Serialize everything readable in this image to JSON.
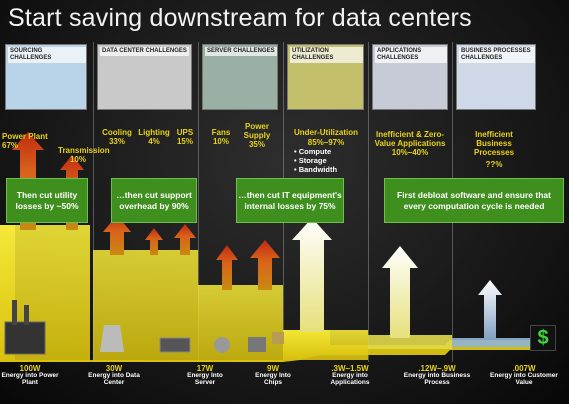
{
  "title": "Start saving downstream for data centers",
  "panels": [
    {
      "id": "sourcing",
      "caption": "Sourcing Challenges"
    },
    {
      "id": "datacenter",
      "caption": "Data Center Challenges"
    },
    {
      "id": "server",
      "caption": "Server Challenges"
    },
    {
      "id": "utilization",
      "caption": "Utilization Challenges"
    },
    {
      "id": "applications",
      "caption": "Applications Challenges"
    },
    {
      "id": "business",
      "caption": "Business Processes Challenges"
    }
  ],
  "losses": {
    "power_plant": "Power Plant 67%",
    "transmission": "Transmission 10%",
    "cooling": "Cooling 33%",
    "lighting": "Lighting 4%",
    "ups": "UPS 15%",
    "fans": "Fans 10%",
    "power_supply": "Power Supply 35%",
    "under_utilization_title": "Under-Utilization",
    "under_utilization_pct": "85%–97%",
    "under_utilization_items": [
      "Compute",
      "Storage",
      "Bandwidth"
    ],
    "inefficient_apps": "Inefficient & Zero-Value Applications 10%–40%",
    "inefficient_bp_title": "Inefficient Business Processes",
    "inefficient_bp_pct": "??%"
  },
  "boxes": {
    "utility": "Then cut utility losses by ~50%",
    "support": "…then cut support overhead by 90%",
    "it": "…then cut IT equipment's internal losses by 75%",
    "software": "First debloat software and ensure that every computation cycle is needed"
  },
  "stages": [
    {
      "value": "100W",
      "desc": "Energy into Power Plant"
    },
    {
      "value": "30W",
      "desc": "Energy into Data Center"
    },
    {
      "value": "17W",
      "desc": "Energy Into Server"
    },
    {
      "value": "9W",
      "desc": "Energy Into Chips"
    },
    {
      "value": ".3W–1.5W",
      "desc": "Energy into Applications"
    },
    {
      "value": ".12W–.9W",
      "desc": "Energy into Business Process"
    },
    {
      "value": ".007W",
      "desc": "Energy into Customer Value"
    }
  ],
  "dollar_symbol": "$",
  "colors": {
    "flow": "#f2e21a",
    "loss_arrow": "#d94b1c",
    "green_box": "#3f8f1e",
    "label_yellow": "#e8d21a",
    "final_flow": "#8fb4d6"
  }
}
